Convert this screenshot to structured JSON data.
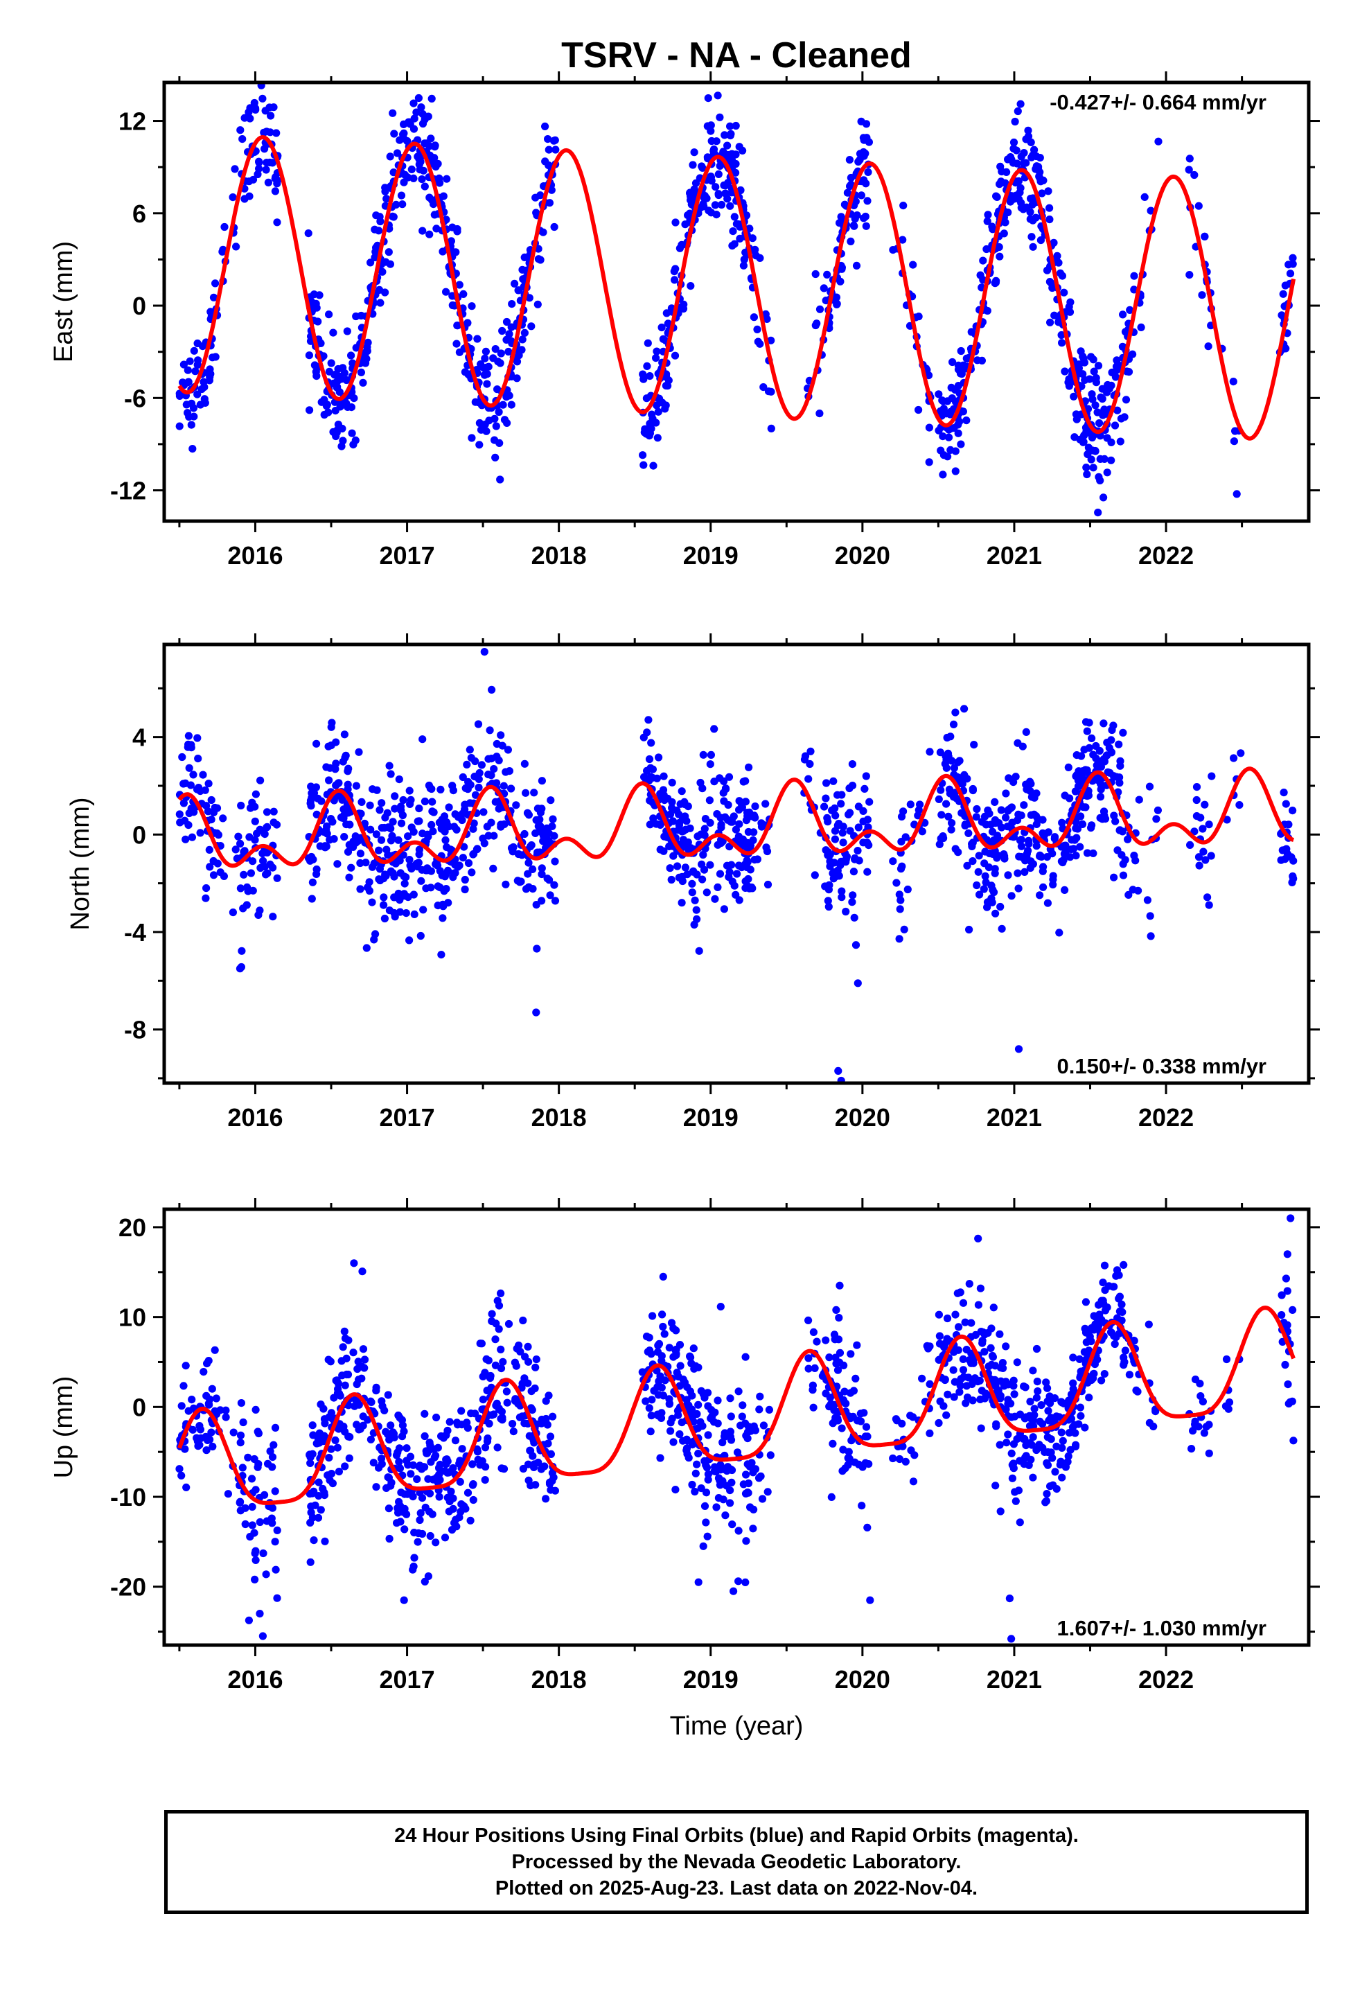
{
  "title": "TSRV  - NA - Cleaned",
  "xlabel": "Time (year)",
  "colors": {
    "points": "#0000ff",
    "fit": "#ff0000",
    "frame": "#000000"
  },
  "footer": {
    "line1": "24 Hour Positions Using Final Orbits (blue) and Rapid Orbits (magenta).",
    "line2": "Processed by the Nevada Geodetic Laboratory.",
    "line3": "Plotted on 2025-Aug-23. Last data on 2022-Nov-04."
  },
  "chart_data": [
    {
      "type": "scatter",
      "component": "east",
      "ylabel": "East (mm)",
      "rate_label": "-0.427+/- 0.664 mm/yr",
      "rate_position": "top-right",
      "xlim": [
        2015.4,
        2022.94
      ],
      "ylim": [
        -14,
        14.5
      ],
      "x_ticks": [
        2016,
        2017,
        2018,
        2019,
        2020,
        2021,
        2022
      ],
      "x_tick_labels": [
        "2016",
        "2017",
        "2018",
        "2019",
        "2020",
        "2021",
        "2022"
      ],
      "y_ticks": [
        -12,
        -6,
        0,
        6,
        12
      ],
      "y_tick_labels": [
        "-12",
        "-6",
        "0",
        "6",
        "12"
      ],
      "data_range": [
        2015.5,
        2022.84
      ],
      "model": {
        "rate": -0.427,
        "offset": 1.2,
        "ref_year": 2019.2,
        "annual_amp": 8.4,
        "annual_phase_year": 2016.05,
        "semiannual_amp": 0.0
      },
      "scatter_density": [
        [
          2015.5,
          2015.75,
          55,
          1.6
        ],
        [
          2015.75,
          2015.9,
          10,
          1.6
        ],
        [
          2015.9,
          2016.15,
          55,
          1.8
        ],
        [
          2016.35,
          2016.95,
          170,
          1.8
        ],
        [
          2016.95,
          2017.2,
          70,
          1.8
        ],
        [
          2017.2,
          2017.9,
          190,
          1.9
        ],
        [
          2017.9,
          2017.98,
          20,
          1.5
        ],
        [
          2018.55,
          2018.65,
          25,
          1.8
        ],
        [
          2018.65,
          2019.3,
          200,
          1.8
        ],
        [
          2019.3,
          2019.4,
          12,
          2.0
        ],
        [
          2019.6,
          2019.75,
          12,
          2.5
        ],
        [
          2019.75,
          2020.05,
          80,
          1.9
        ],
        [
          2020.2,
          2020.45,
          25,
          2.2
        ],
        [
          2020.5,
          2021.35,
          230,
          1.8
        ],
        [
          2021.35,
          2021.6,
          90,
          2.0
        ],
        [
          2021.6,
          2021.8,
          45,
          1.9
        ],
        [
          2021.8,
          2021.95,
          10,
          1.8
        ],
        [
          2022.15,
          2022.3,
          18,
          2.0
        ],
        [
          2022.35,
          2022.5,
          6,
          2.0
        ],
        [
          2022.75,
          2022.84,
          20,
          1.8
        ]
      ]
    },
    {
      "type": "scatter",
      "component": "north",
      "ylabel": "North (mm)",
      "rate_label": "0.150+/- 0.338 mm/yr",
      "rate_position": "bottom-right",
      "xlim": [
        2015.4,
        2022.94
      ],
      "ylim": [
        -10.2,
        7.8
      ],
      "x_ticks": [
        2016,
        2017,
        2018,
        2019,
        2020,
        2021,
        2022
      ],
      "x_tick_labels": [
        "2016",
        "2017",
        "2018",
        "2019",
        "2020",
        "2021",
        "2022"
      ],
      "y_ticks": [
        -8,
        -4,
        0,
        4
      ],
      "y_tick_labels": [
        "-8",
        "-4",
        "0",
        "4"
      ],
      "data_range": [
        2015.5,
        2022.84
      ],
      "model": {
        "rate": 0.15,
        "offset": 0.25,
        "ref_year": 2019.2,
        "annual_amp": 1.1,
        "annual_phase_year": 2016.55,
        "semiannual_amp": 0.85,
        "semiannual_phase_year": 2016.55
      },
      "scatter_density": [
        [
          2015.5,
          2015.75,
          55,
          1.2
        ],
        [
          2015.75,
          2015.9,
          10,
          1.4
        ],
        [
          2015.9,
          2016.15,
          55,
          1.3
        ],
        [
          2016.35,
          2016.95,
          170,
          1.5
        ],
        [
          2016.95,
          2017.2,
          70,
          1.6
        ],
        [
          2017.2,
          2017.9,
          190,
          1.6
        ],
        [
          2017.9,
          2017.98,
          20,
          1.3
        ],
        [
          2018.55,
          2018.65,
          25,
          1.3
        ],
        [
          2018.65,
          2019.3,
          200,
          1.4
        ],
        [
          2019.3,
          2019.4,
          12,
          1.4
        ],
        [
          2019.6,
          2019.75,
          12,
          1.4
        ],
        [
          2019.75,
          2020.05,
          80,
          1.3
        ],
        [
          2020.2,
          2020.45,
          25,
          1.4
        ],
        [
          2020.5,
          2021.35,
          230,
          1.4
        ],
        [
          2021.35,
          2021.6,
          90,
          1.4
        ],
        [
          2021.6,
          2021.8,
          45,
          1.3
        ],
        [
          2021.8,
          2021.95,
          10,
          1.3
        ],
        [
          2022.15,
          2022.3,
          18,
          1.2
        ],
        [
          2022.35,
          2022.5,
          6,
          1.2
        ],
        [
          2022.75,
          2022.84,
          20,
          1.0
        ]
      ],
      "outliers": [
        [
          2015.9,
          -5.5
        ],
        [
          2017.85,
          -7.3
        ],
        [
          2019.84,
          -9.7
        ],
        [
          2019.86,
          -10.1
        ],
        [
          2019.97,
          -6.1
        ],
        [
          2021.03,
          -8.8
        ],
        [
          2017.51,
          7.5
        ]
      ]
    },
    {
      "type": "scatter",
      "component": "up",
      "ylabel": "Up (mm)",
      "rate_label": "1.607+/- 1.030 mm/yr",
      "rate_position": "bottom-right",
      "xlim": [
        2015.4,
        2022.94
      ],
      "ylim": [
        -26.5,
        22
      ],
      "x_ticks": [
        2016,
        2017,
        2018,
        2019,
        2020,
        2021,
        2022
      ],
      "x_tick_labels": [
        "2016",
        "2017",
        "2018",
        "2019",
        "2020",
        "2021",
        "2022"
      ],
      "y_ticks": [
        -20,
        -10,
        0,
        10,
        20
      ],
      "y_tick_labels": [
        "-20",
        "-10",
        "0",
        "10",
        "20"
      ],
      "data_range": [
        2015.5,
        2022.84
      ],
      "model": {
        "rate": 1.607,
        "offset": -1.5,
        "ref_year": 2019.2,
        "annual_amp": 5.6,
        "annual_phase_year": 2016.65,
        "semiannual_amp": 1.4,
        "semiannual_phase_year": 2016.65
      },
      "scatter_density": [
        [
          2015.5,
          2015.75,
          55,
          3.0
        ],
        [
          2015.75,
          2015.9,
          10,
          4.0
        ],
        [
          2015.9,
          2016.15,
          55,
          5.0
        ],
        [
          2016.35,
          2016.95,
          170,
          4.0
        ],
        [
          2016.95,
          2017.2,
          70,
          4.5
        ],
        [
          2017.2,
          2017.9,
          190,
          4.0
        ],
        [
          2017.9,
          2017.98,
          20,
          3.5
        ],
        [
          2018.55,
          2018.65,
          25,
          3.5
        ],
        [
          2018.65,
          2019.3,
          200,
          4.5
        ],
        [
          2019.3,
          2019.4,
          12,
          4.0
        ],
        [
          2019.6,
          2019.75,
          12,
          4.0
        ],
        [
          2019.75,
          2020.05,
          80,
          4.0
        ],
        [
          2020.2,
          2020.45,
          25,
          3.5
        ],
        [
          2020.5,
          2021.35,
          230,
          4.0
        ],
        [
          2021.35,
          2021.6,
          90,
          3.5
        ],
        [
          2021.6,
          2021.8,
          45,
          3.0
        ],
        [
          2021.8,
          2021.95,
          10,
          3.0
        ],
        [
          2022.15,
          2022.3,
          18,
          3.0
        ],
        [
          2022.35,
          2022.5,
          6,
          3.0
        ],
        [
          2022.75,
          2022.84,
          20,
          4.0
        ]
      ],
      "outliers": [
        [
          2016.05,
          -25.5
        ],
        [
          2016.03,
          -23
        ],
        [
          2020.98,
          -25.8
        ],
        [
          2020.97,
          -21.3
        ],
        [
          2016.98,
          -21.5
        ],
        [
          2020.05,
          -21.5
        ],
        [
          2022.82,
          21
        ],
        [
          2022.8,
          17
        ],
        [
          2016.65,
          16
        ],
        [
          2021.72,
          15.8
        ],
        [
          2019.85,
          13.5
        ],
        [
          2018.92,
          -19.5
        ],
        [
          2019.15,
          -20.5
        ]
      ]
    }
  ]
}
